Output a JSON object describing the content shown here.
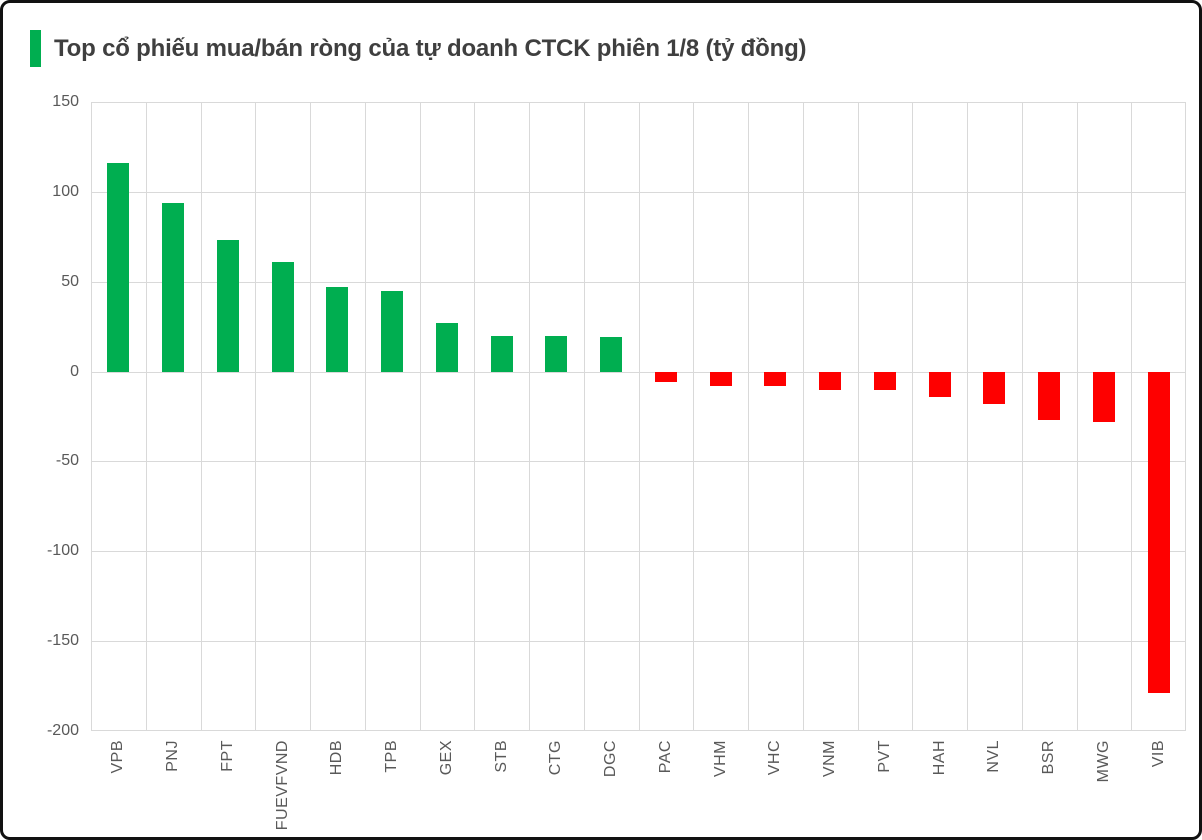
{
  "chart_data": {
    "type": "bar",
    "title": "Top cổ phiếu mua/bán ròng của tự doanh CTCK phiên 1/8 (tỷ đồng)",
    "xlabel": "",
    "ylabel": "",
    "unit": "tỷ đồng",
    "ylim": [
      -200,
      150
    ],
    "ytick_step": 50,
    "yticks": [
      150,
      100,
      50,
      0,
      -50,
      -100,
      -150,
      -200
    ],
    "grid": true,
    "legend": false,
    "categories": [
      "VPB",
      "PNJ",
      "FPT",
      "FUEVFVND",
      "HDB",
      "TPB",
      "GEX",
      "STB",
      "CTG",
      "DGC",
      "PAC",
      "VHM",
      "VHC",
      "VNM",
      "PVT",
      "HAH",
      "NVL",
      "BSR",
      "MWG",
      "VIB"
    ],
    "values": [
      116,
      94,
      73,
      61,
      47,
      45,
      27,
      20,
      20,
      19,
      -6,
      -8,
      -8,
      -10,
      -10,
      -14,
      -18,
      -27,
      -28,
      -179
    ],
    "colors": {
      "positive": "#00AE50",
      "negative": "#FE0000",
      "accent_bar": "#00AE50",
      "title_text": "#3F3F3F",
      "axis_text": "#595959",
      "gridline": "#D9D9D9",
      "background": "#FFFFFF",
      "frame_border": "#111111"
    }
  }
}
